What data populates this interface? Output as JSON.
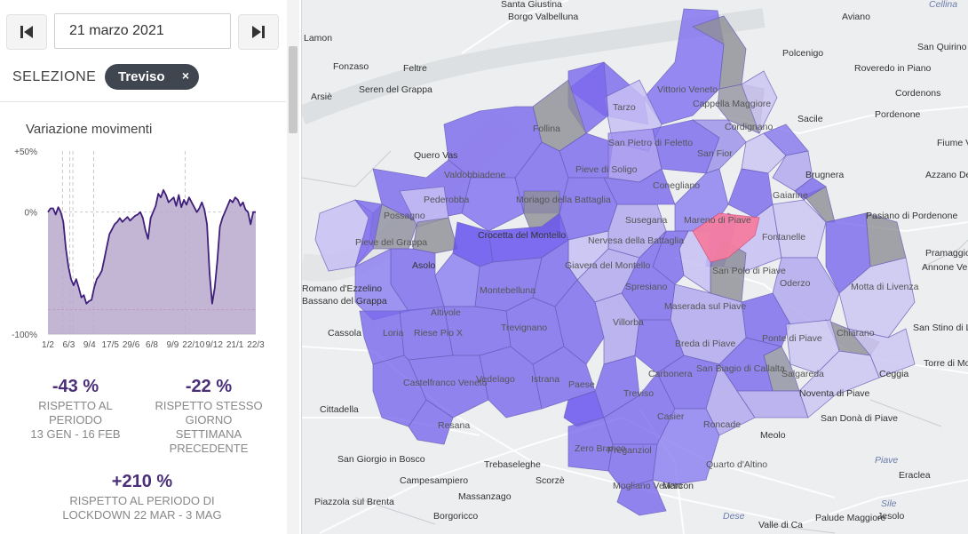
{
  "navigation": {
    "prev_label": "",
    "next_label": ""
  },
  "date": "21 marzo 2021",
  "selection": {
    "label": "SELEZIONE",
    "chip": "Treviso",
    "chip_close": "×"
  },
  "chart_title": "Variazione movimenti",
  "chart_data": {
    "type": "area",
    "title": "Variazione movimenti",
    "y_ticks": [
      "+50%",
      "0%",
      "-100%"
    ],
    "x_ticks": [
      "1/2",
      "6/3",
      "9/4",
      "17/5",
      "29/6",
      "6/8",
      "9/9",
      "22/10",
      "9/12",
      "21/1",
      "22/3"
    ],
    "ylim": [
      -100,
      50
    ],
    "reference_line": -80,
    "series": [
      {
        "values": [
          0,
          3,
          3,
          -2,
          4,
          0,
          -8,
          -30,
          -45,
          -55,
          -60,
          -55,
          -62,
          -70,
          -68,
          -75,
          -73,
          -72,
          -62,
          -55,
          -52,
          -48,
          -38,
          -28,
          -18,
          -14,
          -10,
          -8,
          -5,
          -8,
          -6,
          -4,
          -7,
          -5,
          -3,
          -2,
          0,
          -5,
          -15,
          -22,
          -5,
          0,
          5,
          15,
          12,
          18,
          14,
          8,
          10,
          12,
          5,
          14,
          4,
          10,
          6,
          12,
          8,
          4,
          0,
          3,
          8,
          2,
          -10,
          -50,
          -75,
          -62,
          -40,
          -12,
          -5,
          0,
          5,
          10,
          8,
          12,
          10,
          5,
          8,
          2,
          0,
          -10,
          0,
          0
        ]
      }
    ]
  },
  "stats": {
    "s1": {
      "value": "-43 %",
      "line1": "RISPETTO AL",
      "line2": "PERIODO",
      "line3": "13 GEN - 16 FEB"
    },
    "s2": {
      "value": "-22 %",
      "line1": "RISPETTO STESSO",
      "line2": "GIORNO",
      "line3": "SETTIMANA",
      "line4": "PRECEDENTE"
    },
    "s3": {
      "value": "+210 %",
      "line1": "RISPETTO AL PERIODO DI",
      "line2": "LOCKDOWN 22 MAR - 3 MAG"
    }
  },
  "colors": {
    "accent": "#4a2f78",
    "chart_fill": "#b9a8cc",
    "chart_line": "#3f1f7a",
    "selected_comune": "#f47ca0",
    "reference_line": "#e0508a"
  },
  "map_labels": [
    "Santa Giustina",
    "Borgo Valbelluna",
    "Aviano",
    "Cellina",
    "Lamon",
    "Polcenigo",
    "San Quirino",
    "Fonzaso",
    "Feltre",
    "Roveredo in Piano",
    "Arsiè",
    "Seren del Grappa",
    "Vittorio Veneto",
    "Cordenons",
    "Cappella Maggiore",
    "Tarzo",
    "Pordenone",
    "Sacile",
    "Follina",
    "Cordignano",
    "San Pietro di Feletto",
    "Fiume Veneto",
    "Quero Vas",
    "San Fior",
    "Brugnera",
    "Azzano Decimo",
    "Valdobbiadene",
    "Pieve di Soligo",
    "Conegliano",
    "Gaiarine",
    "Pederobba",
    "Moriago della Battaglia",
    "Possagno",
    "Susegana",
    "Mareno di Piave",
    "Pasiano di Pordenone",
    "Pieve del Grappa",
    "Crocetta del Montello",
    "Fontanelle",
    "Nervesa della Battaglia",
    "Pramaggiore",
    "Asolo",
    "San Polo di Piave",
    "Annone Veneto",
    "Giavera del Montello",
    "Spresiano",
    "Oderzo",
    "Montebelluna",
    "Motta di Livenza",
    "Romano d'Ezzelino",
    "Bassano del Grappa",
    "Altivole",
    "Maserada sul Piave",
    "San Stino di Livenza",
    "Cassola",
    "Loria",
    "Riese Pio X",
    "Trevignano",
    "Villorba",
    "Ponte di Piave",
    "Chiarano",
    "Breda di Piave",
    "Torre di Mosto",
    "San Biagio di Callalta",
    "Castelfranco Veneto",
    "Vedelago",
    "Istrana",
    "Carbonera",
    "Ceggia",
    "Salgareda",
    "Noventa di Piave",
    "Paese",
    "Treviso",
    "Cittadella",
    "Casier",
    "San Donà di Piave",
    "Resana",
    "Roncade",
    "Meolo",
    "Piave",
    "San Giorgio in Bosco",
    "Zero Branco",
    "Preganziol",
    "Trebaseleghe",
    "Quarto d'Altino",
    "Campesampiero",
    "Scorzè",
    "Mogliano Veneto",
    "Marcon",
    "Eraclea",
    "Piazzola sul Brenta",
    "Massanzago",
    "Borgoricco",
    "Dese",
    "Valle di Ca",
    "Palude Maggiore",
    "Jesolo",
    "Sile"
  ]
}
